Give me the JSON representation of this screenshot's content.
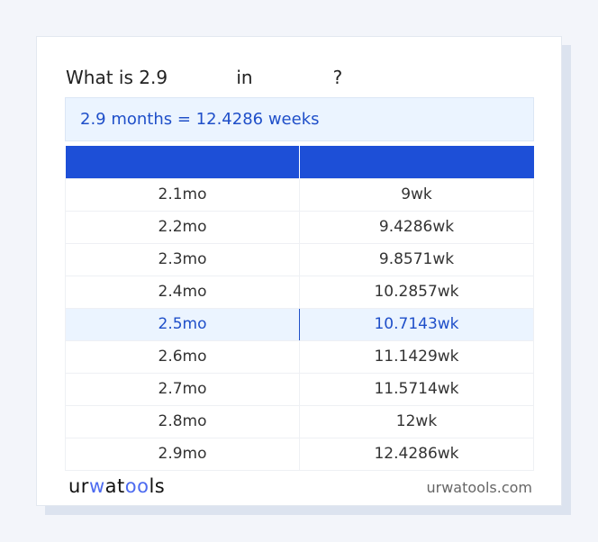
{
  "title": {
    "prefix": "What is 2.9",
    "mid": "in",
    "suffix": "?"
  },
  "result": "2.9 months = 12.4286 weeks",
  "table": {
    "headers": [
      "",
      ""
    ],
    "rows": [
      [
        "2.1mo",
        "9wk"
      ],
      [
        "2.2mo",
        "9.4286wk"
      ],
      [
        "2.3mo",
        "9.8571wk"
      ],
      [
        "2.4mo",
        "10.2857wk"
      ],
      [
        "2.5mo",
        "10.7143wk"
      ],
      [
        "2.6mo",
        "11.1429wk"
      ],
      [
        "2.7mo",
        "11.5714wk"
      ],
      [
        "2.8mo",
        "12wk"
      ],
      [
        "2.9mo",
        "12.4286wk"
      ]
    ],
    "highlighted_row": 4
  },
  "footer": {
    "logo": "urwatools",
    "site": "urwatools.com"
  },
  "colors": {
    "accent": "#1d4fd7",
    "highlight_bg": "#ebf4ff"
  }
}
